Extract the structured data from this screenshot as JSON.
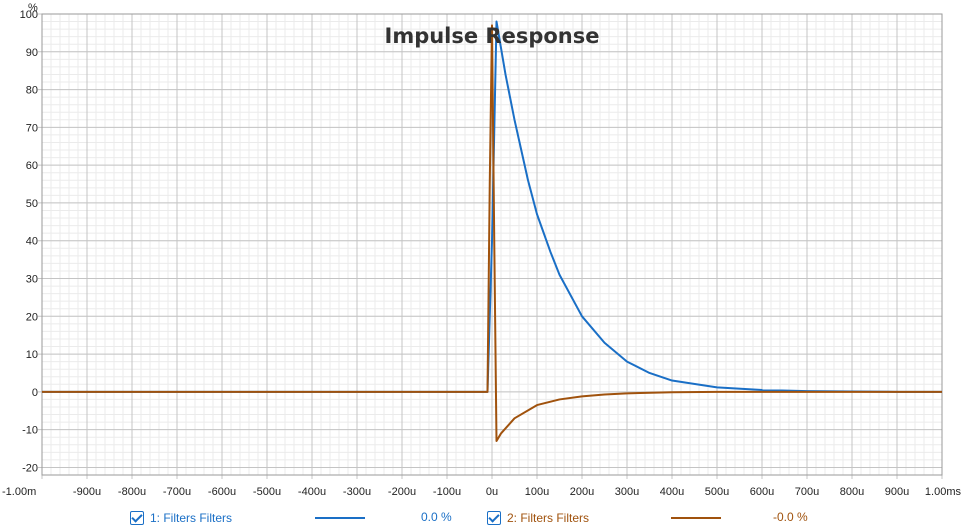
{
  "chart_data": {
    "type": "line",
    "title": "Impulse Response",
    "y_unit": "%",
    "x_unit": "s",
    "xlim": [
      -0.001,
      0.001
    ],
    "ylim": [
      -22,
      100
    ],
    "x_ticks": [
      -0.001,
      -0.0009,
      -0.0008,
      -0.0007,
      -0.0006,
      -0.0005,
      -0.0004,
      -0.0003,
      -0.0002,
      -0.0001,
      0,
      0.0001,
      0.0002,
      0.0003,
      0.0004,
      0.0005,
      0.0006,
      0.0007,
      0.0008,
      0.0009,
      0.001
    ],
    "x_tick_labels": [
      "-1.00m",
      "-900u",
      "-800u",
      "-700u",
      "-600u",
      "-500u",
      "-400u",
      "-300u",
      "-200u",
      "-100u",
      "0u",
      "100u",
      "200u",
      "300u",
      "400u",
      "500u",
      "600u",
      "700u",
      "800u",
      "900u",
      "1.00ms"
    ],
    "y_ticks": [
      100,
      90,
      80,
      70,
      60,
      50,
      40,
      30,
      20,
      10,
      0,
      -10,
      -20
    ],
    "y_tick_labels": [
      "100",
      "90",
      "80",
      "70",
      "60",
      "50",
      "40",
      "30",
      "20",
      "10",
      "0",
      "-10",
      "-20"
    ],
    "grid": true,
    "series": [
      {
        "name": "1: Filters Filters",
        "color": "#1a6fc6",
        "value_label": "0.0 %",
        "x": [
          -0.001,
          -1e-05,
          0,
          1e-05,
          3e-05,
          5e-05,
          8e-05,
          0.0001,
          0.00013,
          0.00015,
          0.0002,
          0.00025,
          0.0003,
          0.00035,
          0.0004,
          0.0005,
          0.0006,
          0.0007,
          0.0008,
          0.0009,
          0.001
        ],
        "y": [
          0,
          0,
          40,
          98,
          84,
          72,
          56,
          47,
          37,
          31,
          20,
          13,
          8,
          5,
          3,
          1.2,
          0.5,
          0.2,
          0.1,
          0,
          0
        ]
      },
      {
        "name": "2: Filters Filters",
        "color": "#a0520d",
        "value_label": "-0.0 %",
        "x": [
          -0.001,
          -1e-05,
          -5e-06,
          0,
          5e-06,
          1e-05,
          2e-05,
          5e-05,
          0.0001,
          0.00015,
          0.0002,
          0.00025,
          0.0003,
          0.0004,
          0.0005,
          0.0006,
          0.001
        ],
        "y": [
          0,
          0,
          55,
          97,
          40,
          -13,
          -11,
          -7,
          -3.5,
          -2,
          -1.2,
          -0.7,
          -0.4,
          -0.1,
          0,
          0,
          0
        ]
      }
    ]
  }
}
